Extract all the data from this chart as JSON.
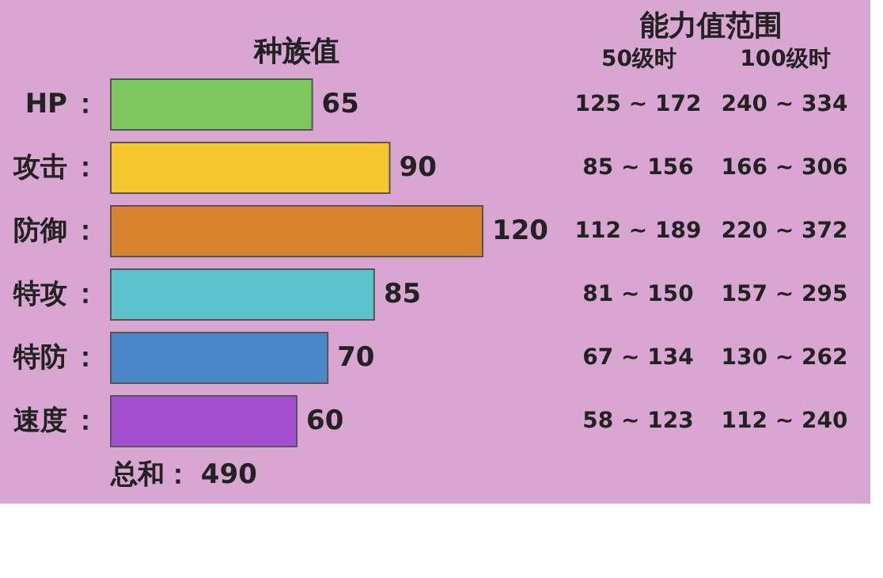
{
  "chart_data": {
    "type": "bar",
    "orientation": "horizontal",
    "title": "种族值",
    "categories": [
      "HP",
      "攻击",
      "防御",
      "特攻",
      "特防",
      "速度"
    ],
    "values": [
      65,
      90,
      120,
      85,
      70,
      60
    ],
    "colors": [
      "#7dc85c",
      "#f7c72f",
      "#d9832f",
      "#5cc3cd",
      "#4a87c9",
      "#a44fcf"
    ],
    "data_labels": true,
    "annotations": [
      "能力值范围",
      "50级时",
      "100级时",
      "125 ~ 172",
      "240 ~ 334",
      "85 ~ 156",
      "166 ~ 306",
      "112 ~ 189",
      "220 ~ 372",
      "81 ~ 150",
      "157 ~ 295",
      "67 ~ 134",
      "130 ~ 262",
      "58 ~ 123",
      "112 ~ 240",
      "总和：  490",
      "："
    ]
  }
}
